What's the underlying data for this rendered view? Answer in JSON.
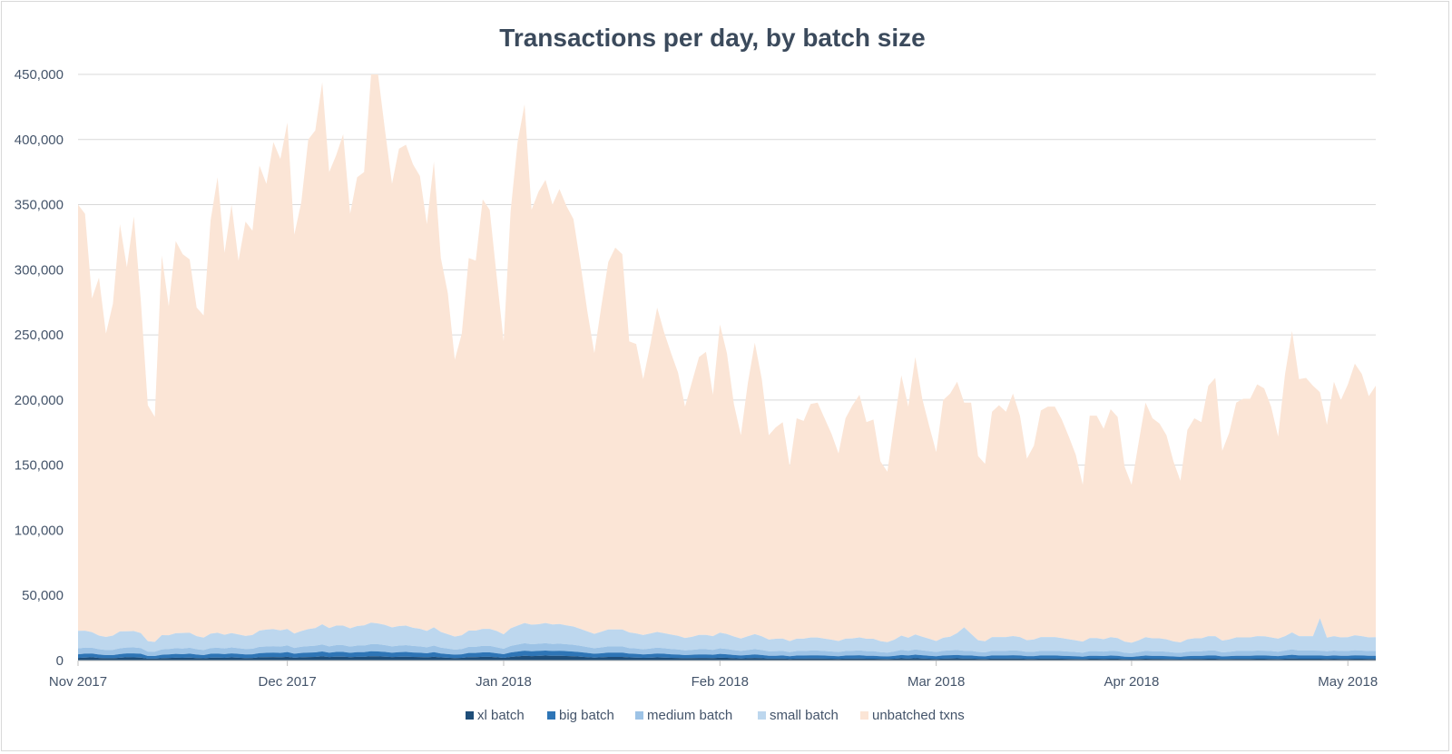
{
  "chart_data": {
    "type": "area",
    "stacked": true,
    "title": "Transactions per day, by batch size",
    "xlabel": "",
    "ylabel": "",
    "ylim": [
      0,
      450000
    ],
    "y_ticks": [
      0,
      50000,
      100000,
      150000,
      200000,
      250000,
      300000,
      350000,
      400000,
      450000
    ],
    "y_tick_labels": [
      "0",
      "50,000",
      "100,000",
      "150,000",
      "200,000",
      "250,000",
      "300,000",
      "350,000",
      "400,000",
      "450,000"
    ],
    "x_range_days": [
      0,
      186
    ],
    "x_ticks": [
      0,
      30,
      61,
      92,
      123,
      151,
      182
    ],
    "x_tick_labels": [
      "Nov 2017",
      "Dec 2017",
      "Jan 2018",
      "Feb 2018",
      "Mar 2018",
      "Apr 2018",
      "May 2018"
    ],
    "grid": true,
    "legend_position": "bottom",
    "x_day_index": [
      0,
      1,
      2,
      3,
      4,
      5,
      6,
      7,
      8,
      9,
      10,
      11,
      12,
      13,
      14,
      15,
      16,
      17,
      18,
      19,
      20,
      21,
      22,
      23,
      24,
      25,
      26,
      27,
      28,
      29,
      30,
      31,
      32,
      33,
      34,
      35,
      36,
      37,
      38,
      39,
      40,
      41,
      42,
      43,
      44,
      45,
      46,
      47,
      48,
      49,
      50,
      51,
      52,
      53,
      54,
      55,
      56,
      57,
      58,
      59,
      60,
      61,
      62,
      63,
      64,
      65,
      66,
      67,
      68,
      69,
      70,
      71,
      72,
      73,
      74,
      75,
      76,
      77,
      78,
      79,
      80,
      81,
      82,
      83,
      84,
      85,
      86,
      87,
      88,
      89,
      90,
      91,
      92,
      93,
      94,
      95,
      96,
      97,
      98,
      99,
      100,
      101,
      102,
      103,
      104,
      105,
      106,
      107,
      108,
      109,
      110,
      111,
      112,
      113,
      114,
      115,
      116,
      117,
      118,
      119,
      120,
      121,
      122,
      123,
      124,
      125,
      126,
      127,
      128,
      129,
      130,
      131,
      132,
      133,
      134,
      135,
      136,
      137,
      138,
      139,
      140,
      141,
      142,
      143,
      144,
      145,
      146,
      147,
      148,
      149,
      150,
      151,
      152,
      153,
      154,
      155,
      156,
      157,
      158,
      159,
      160,
      161,
      162,
      163,
      164,
      165,
      166,
      167,
      168,
      169,
      170,
      171,
      172,
      173,
      174,
      175,
      176,
      177,
      178,
      179,
      180,
      181,
      182,
      183,
      184,
      185,
      186
    ],
    "total_daily": [
      350000,
      343000,
      278000,
      294000,
      251000,
      274000,
      335000,
      302000,
      341000,
      276000,
      196000,
      187000,
      311000,
      272000,
      322000,
      312000,
      308000,
      271000,
      265000,
      338000,
      371000,
      313000,
      350000,
      307000,
      337000,
      330000,
      380000,
      366000,
      398000,
      385000,
      413000,
      327000,
      352000,
      400000,
      407000,
      444000,
      375000,
      388000,
      404000,
      343000,
      371000,
      375000,
      450000,
      450000,
      407000,
      366000,
      393000,
      396000,
      381000,
      372000,
      335000,
      383000,
      309000,
      282000,
      231000,
      251000,
      309000,
      307000,
      354000,
      346000,
      295000,
      245000,
      345000,
      398000,
      427000,
      346000,
      360000,
      369000,
      350000,
      362000,
      349000,
      339000,
      305000,
      268000,
      236000,
      272000,
      306000,
      317000,
      312000,
      245000,
      243000,
      216000,
      242000,
      271000,
      252000,
      236000,
      221000,
      195000,
      214000,
      233000,
      237000,
      204000,
      258000,
      236000,
      197000,
      173000,
      213000,
      244000,
      216000,
      173000,
      179000,
      183000,
      149000,
      186000,
      184000,
      197000,
      198000,
      186000,
      174000,
      159000,
      186000,
      196000,
      204000,
      183000,
      185000,
      153000,
      145000,
      183000,
      219000,
      195000,
      233000,
      201000,
      180000,
      160000,
      200000,
      205000,
      214000,
      198000,
      198000,
      157000,
      151000,
      191000,
      196000,
      191000,
      205000,
      188000,
      155000,
      165000,
      192000,
      195000,
      195000,
      185000,
      172000,
      158000,
      135000,
      188000,
      188000,
      178000,
      193000,
      187000,
      149000,
      135000,
      167000,
      198000,
      186000,
      182000,
      173000,
      153000,
      138000,
      177000,
      186000,
      183000,
      211000,
      217000,
      161000,
      175000,
      198000,
      201000,
      201000,
      212000,
      209000,
      195000,
      172000,
      220000,
      253000,
      216000,
      217000,
      211000,
      206000,
      181000,
      214000,
      200000,
      212000,
      228000,
      220000,
      203000,
      211000
    ],
    "series": [
      {
        "name": "xl batch",
        "color": "#1f4e79",
        "values": [
          2000,
          2300,
          2500,
          2000,
          1800,
          1800,
          2200,
          2500,
          2400,
          2300,
          1500,
          1500,
          1800,
          2000,
          2200,
          2100,
          2300,
          1900,
          1700,
          2200,
          2300,
          2100,
          2400,
          2200,
          1900,
          2000,
          2500,
          2600,
          2700,
          2500,
          2900,
          2200,
          2500,
          2700,
          2800,
          3200,
          2700,
          3000,
          3000,
          2600,
          2900,
          2900,
          3300,
          3200,
          3000,
          2700,
          2900,
          3000,
          2800,
          2700,
          2500,
          2900,
          2400,
          2200,
          1900,
          2100,
          2600,
          2600,
          2900,
          2900,
          2500,
          2100,
          2800,
          3200,
          3700,
          3400,
          3600,
          3800,
          3600,
          3700,
          3500,
          3300,
          3000,
          2600,
          2300,
          2500,
          2800,
          2800,
          2800,
          2400,
          2300,
          2100,
          2200,
          2400,
          2300,
          2100,
          2000,
          1800,
          1900,
          2000,
          2000,
          1900,
          2200,
          2100,
          1800,
          1600,
          1800,
          2000,
          1800,
          1500,
          1500,
          1600,
          1300,
          1500,
          1500,
          1600,
          1600,
          1500,
          1400,
          1300,
          1500,
          1500,
          1600,
          1400,
          1400,
          1300,
          1200,
          1400,
          1700,
          1500,
          1800,
          1600,
          1400,
          1200,
          1500,
          1600,
          1700,
          1500,
          1500,
          1300,
          1200,
          1500,
          1500,
          1500,
          1600,
          1500,
          1300,
          1300,
          1500,
          1500,
          1500,
          1400,
          1300,
          1200,
          1100,
          1400,
          1400,
          1300,
          1400,
          1400,
          1100,
          1000,
          1200,
          1400,
          1300,
          1300,
          1200,
          1100,
          1000,
          1200,
          1300,
          1300,
          1400,
          1400,
          1100,
          1200,
          1300,
          1300,
          1300,
          1400,
          1400,
          1300,
          1200,
          1400,
          1600,
          1400,
          1400,
          1400,
          1400,
          1300,
          1400,
          1300,
          1300,
          1400,
          1400,
          1300,
          1300
        ]
      },
      {
        "name": "big batch",
        "color": "#2e75b6",
        "values": [
          2800,
          3000,
          2900,
          2600,
          2400,
          2400,
          2800,
          3000,
          3100,
          2900,
          2000,
          2000,
          2600,
          2700,
          2900,
          2800,
          3000,
          2700,
          2500,
          3000,
          3000,
          2900,
          3100,
          2900,
          2800,
          2800,
          3200,
          3300,
          3400,
          3300,
          3600,
          3000,
          3300,
          3400,
          3500,
          3800,
          3300,
          3600,
          3600,
          3300,
          3500,
          3500,
          3800,
          3800,
          3600,
          3300,
          3500,
          3600,
          3400,
          3300,
          3100,
          3500,
          3000,
          2800,
          2600,
          2700,
          3200,
          3200,
          3400,
          3400,
          3100,
          2800,
          3400,
          3700,
          3900,
          3700,
          3800,
          3900,
          3700,
          3800,
          3700,
          3600,
          3400,
          3200,
          2900,
          3100,
          3300,
          3300,
          3300,
          2900,
          2800,
          2600,
          2800,
          3000,
          2900,
          2700,
          2600,
          2400,
          2500,
          2700,
          2700,
          2500,
          2900,
          2700,
          2500,
          2300,
          2500,
          2700,
          2500,
          2200,
          2200,
          2300,
          2000,
          2300,
          2300,
          2400,
          2400,
          2300,
          2200,
          2000,
          2300,
          2400,
          2500,
          2300,
          2300,
          2000,
          1900,
          2200,
          2600,
          2400,
          2700,
          2500,
          2300,
          2100,
          2400,
          2500,
          2600,
          2400,
          2400,
          2100,
          2000,
          2400,
          2400,
          2400,
          2500,
          2400,
          2100,
          2100,
          2400,
          2400,
          2400,
          2300,
          2200,
          2100,
          1900,
          2300,
          2300,
          2200,
          2400,
          2300,
          1900,
          1800,
          2100,
          2400,
          2300,
          2300,
          2200,
          2000,
          1900,
          2200,
          2300,
          2300,
          2500,
          2500,
          2000,
          2200,
          2400,
          2400,
          2400,
          2500,
          2500,
          2400,
          2200,
          2500,
          2800,
          2500,
          2500,
          2500,
          2500,
          2300,
          2500,
          2400,
          2400,
          2600,
          2500,
          2400,
          2400
        ]
      },
      {
        "name": "medium batch",
        "color": "#9dc3e6",
        "values": [
          4500,
          4600,
          4400,
          4100,
          3900,
          4000,
          4400,
          4500,
          4600,
          4400,
          3400,
          3300,
          4100,
          4200,
          4400,
          4300,
          4500,
          4100,
          3900,
          4400,
          4500,
          4300,
          4600,
          4400,
          4200,
          4300,
          4800,
          4900,
          5000,
          4900,
          5200,
          4500,
          4800,
          5000,
          5100,
          5400,
          4900,
          5200,
          5200,
          4800,
          5100,
          5100,
          5500,
          5500,
          5200,
          4900,
          5100,
          5200,
          5000,
          4900,
          4600,
          5100,
          4500,
          4200,
          3900,
          4100,
          4700,
          4700,
          5000,
          5000,
          4600,
          4200,
          5000,
          5400,
          5700,
          5400,
          5500,
          5600,
          5400,
          5500,
          5300,
          5200,
          4900,
          4600,
          4300,
          4500,
          4800,
          4800,
          4800,
          4300,
          4200,
          3900,
          4200,
          4500,
          4300,
          4100,
          3900,
          3600,
          3800,
          4000,
          4000,
          3800,
          4300,
          4100,
          3700,
          3500,
          3800,
          4100,
          3800,
          3400,
          3500,
          3500,
          3100,
          3500,
          3500,
          3700,
          3700,
          3500,
          3400,
          3200,
          3500,
          3600,
          3700,
          3500,
          3500,
          3100,
          3000,
          3400,
          3900,
          3600,
          4000,
          3700,
          3500,
          3200,
          3600,
          3700,
          3800,
          3600,
          3600,
          3200,
          3100,
          3600,
          3600,
          3600,
          3700,
          3600,
          3200,
          3300,
          3600,
          3600,
          3600,
          3500,
          3400,
          3200,
          3000,
          3500,
          3500,
          3400,
          3600,
          3500,
          3000,
          2900,
          3200,
          3600,
          3500,
          3500,
          3400,
          3100,
          3000,
          3400,
          3500,
          3500,
          3800,
          3800,
          3200,
          3300,
          3600,
          3600,
          3600,
          3800,
          3700,
          3600,
          3400,
          3800,
          4200,
          3800,
          3800,
          3800,
          3700,
          3500,
          3800,
          3600,
          3700,
          3900,
          3800,
          3600,
          3700
        ]
      },
      {
        "name": "small batch",
        "color": "#bdd7ee",
        "values": [
          13500,
          13000,
          12000,
          10500,
          10000,
          11000,
          13000,
          12500,
          12500,
          11500,
          8000,
          7500,
          11000,
          10500,
          11500,
          12000,
          11500,
          10000,
          9500,
          11000,
          11500,
          10500,
          11000,
          10500,
          10000,
          10500,
          12500,
          13000,
          13000,
          12500,
          12500,
          11000,
          12000,
          13000,
          13500,
          15500,
          14000,
          15000,
          15000,
          14000,
          15000,
          15500,
          16500,
          16000,
          15500,
          14500,
          15000,
          15000,
          14000,
          13500,
          12500,
          14000,
          12000,
          11000,
          10000,
          10500,
          12500,
          12500,
          13000,
          13000,
          12500,
          11000,
          13500,
          14500,
          15500,
          15000,
          15000,
          15500,
          15000,
          15000,
          14500,
          14000,
          13000,
          12000,
          11000,
          12000,
          13000,
          13000,
          13000,
          12000,
          11500,
          11000,
          11500,
          12000,
          11500,
          11000,
          10500,
          9500,
          10000,
          11000,
          11000,
          10500,
          12000,
          11500,
          10500,
          9500,
          10500,
          11500,
          10500,
          9000,
          9500,
          9500,
          8500,
          9500,
          9500,
          10000,
          10000,
          9500,
          9000,
          8500,
          9500,
          9500,
          10000,
          9500,
          9500,
          8500,
          8000,
          9000,
          11000,
          10000,
          11500,
          10500,
          9500,
          8500,
          10000,
          10500,
          13000,
          18000,
          13000,
          9000,
          8500,
          10500,
          10500,
          10500,
          11000,
          10500,
          9000,
          9500,
          10500,
          10500,
          10500,
          10000,
          9500,
          9000,
          8500,
          10000,
          10000,
          9500,
          10500,
          10000,
          8500,
          8000,
          9000,
          10500,
          10000,
          10000,
          9500,
          8500,
          8000,
          9500,
          10000,
          10000,
          11000,
          11000,
          9000,
          9500,
          10500,
          10500,
          10500,
          11000,
          11000,
          10500,
          10000,
          11000,
          13000,
          11000,
          11000,
          11000,
          25000,
          10500,
          11000,
          10500,
          10500,
          11500,
          11000,
          10500,
          10500
        ]
      }
    ],
    "series_total_label": "unbatched txns",
    "series_total_color": "#fbe5d6"
  }
}
